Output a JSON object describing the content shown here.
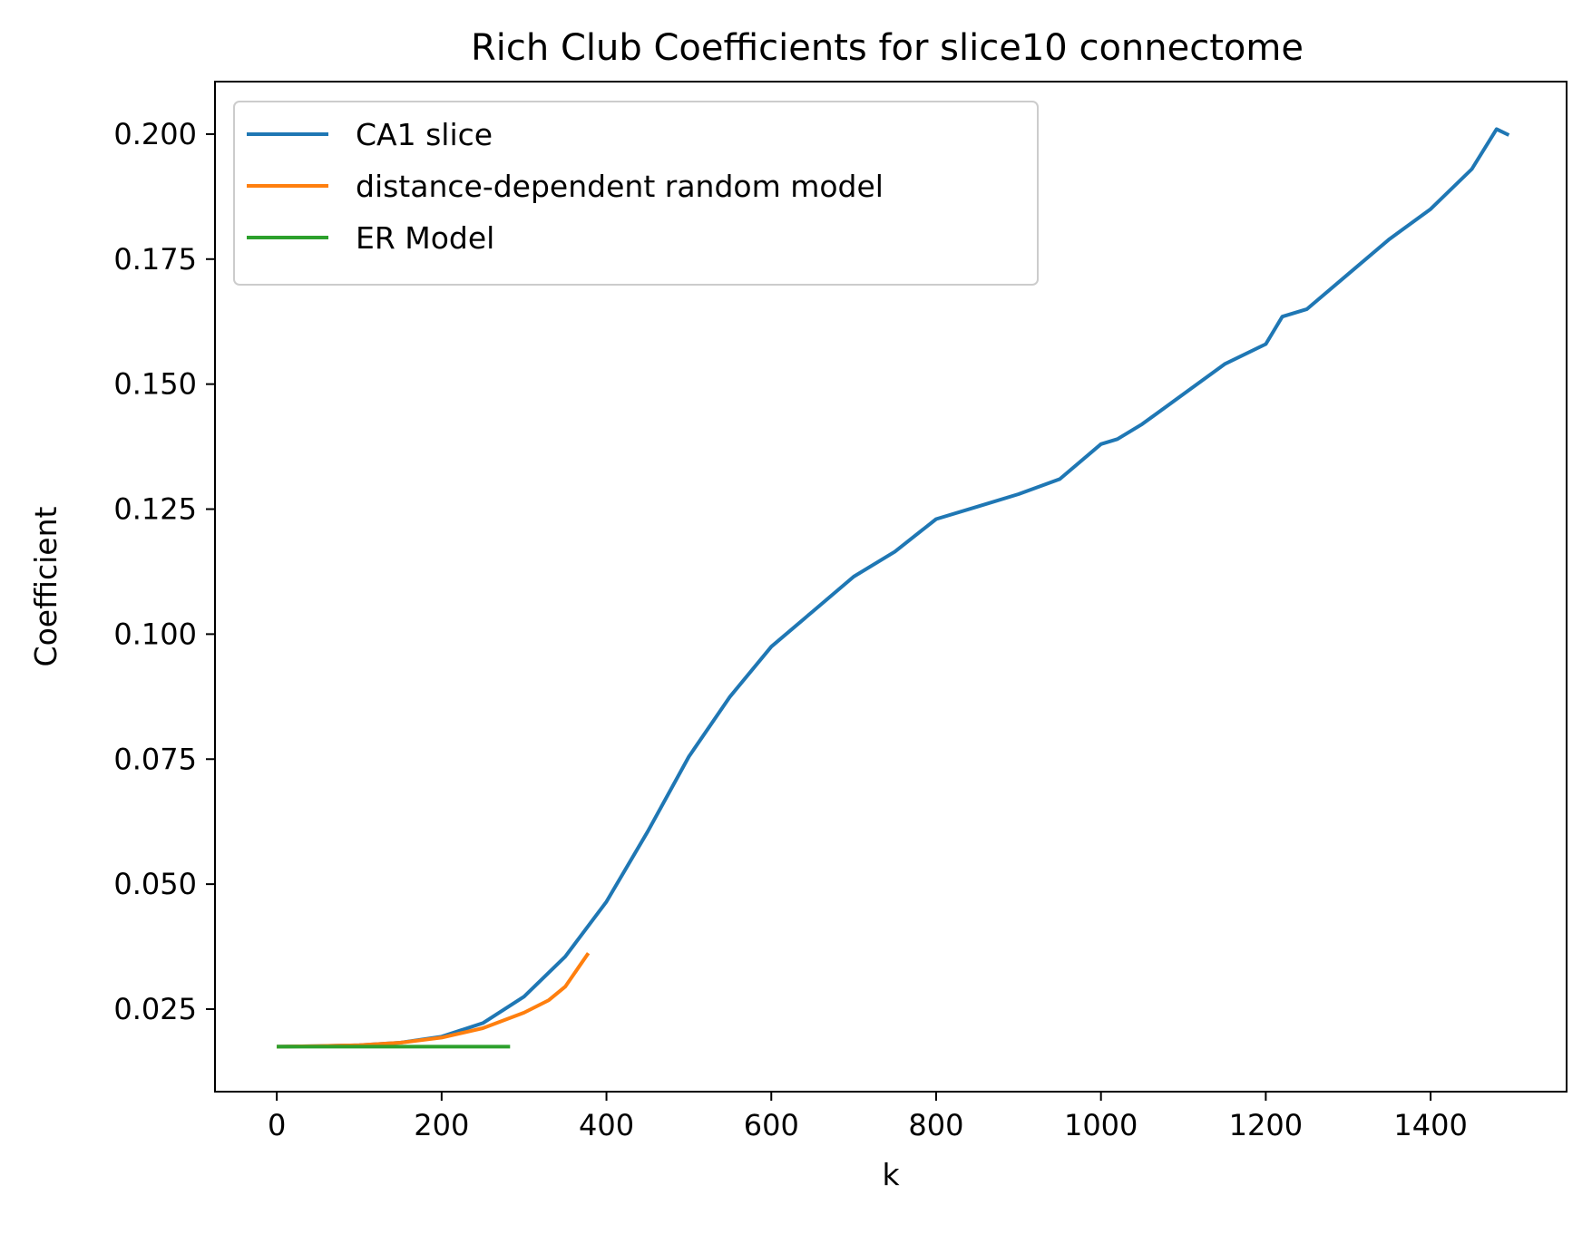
{
  "chart_data": {
    "type": "line",
    "title": "Rich Club Coefficients for slice10 connectome",
    "xlabel": "k",
    "ylabel": "Coefficient",
    "xlim": [
      -75,
      1565
    ],
    "ylim": [
      0.0085,
      0.2105
    ],
    "xticks": [
      0,
      200,
      400,
      600,
      800,
      1000,
      1200,
      1400
    ],
    "xtick_labels": [
      "0",
      "200",
      "400",
      "600",
      "800",
      "1000",
      "1200",
      "1400"
    ],
    "yticks": [
      0.025,
      0.05,
      0.075,
      0.1,
      0.125,
      0.15,
      0.175,
      0.2
    ],
    "ytick_labels": [
      "0.025",
      "0.050",
      "0.075",
      "0.100",
      "0.125",
      "0.150",
      "0.175",
      "0.200"
    ],
    "grid": false,
    "legend_position": "top-left",
    "series": [
      {
        "name": "CA1 slice",
        "color": "#1f77b4",
        "x": [
          0,
          50,
          100,
          150,
          200,
          250,
          300,
          350,
          400,
          450,
          500,
          550,
          600,
          650,
          700,
          750,
          800,
          850,
          900,
          950,
          1000,
          1020,
          1050,
          1100,
          1150,
          1200,
          1220,
          1250,
          1300,
          1350,
          1400,
          1450,
          1480,
          1495
        ],
        "y": [
          0.0175,
          0.0176,
          0.0178,
          0.0183,
          0.0195,
          0.0222,
          0.0275,
          0.0355,
          0.0465,
          0.0605,
          0.0755,
          0.0875,
          0.0975,
          0.1045,
          0.1115,
          0.1165,
          0.123,
          0.1255,
          0.128,
          0.131,
          0.138,
          0.139,
          0.142,
          0.148,
          0.154,
          0.158,
          0.1635,
          0.165,
          0.172,
          0.179,
          0.185,
          0.193,
          0.201,
          0.1998
        ]
      },
      {
        "name": "distance-dependent random model",
        "color": "#ff7f0e",
        "x": [
          0,
          50,
          100,
          150,
          200,
          250,
          300,
          330,
          350,
          378
        ],
        "y": [
          0.0175,
          0.0176,
          0.0178,
          0.0183,
          0.0193,
          0.0212,
          0.0243,
          0.0268,
          0.0295,
          0.0362
        ]
      },
      {
        "name": "ER Model",
        "color": "#2ca02c",
        "x": [
          0,
          283
        ],
        "y": [
          0.0175,
          0.0175
        ]
      }
    ]
  }
}
